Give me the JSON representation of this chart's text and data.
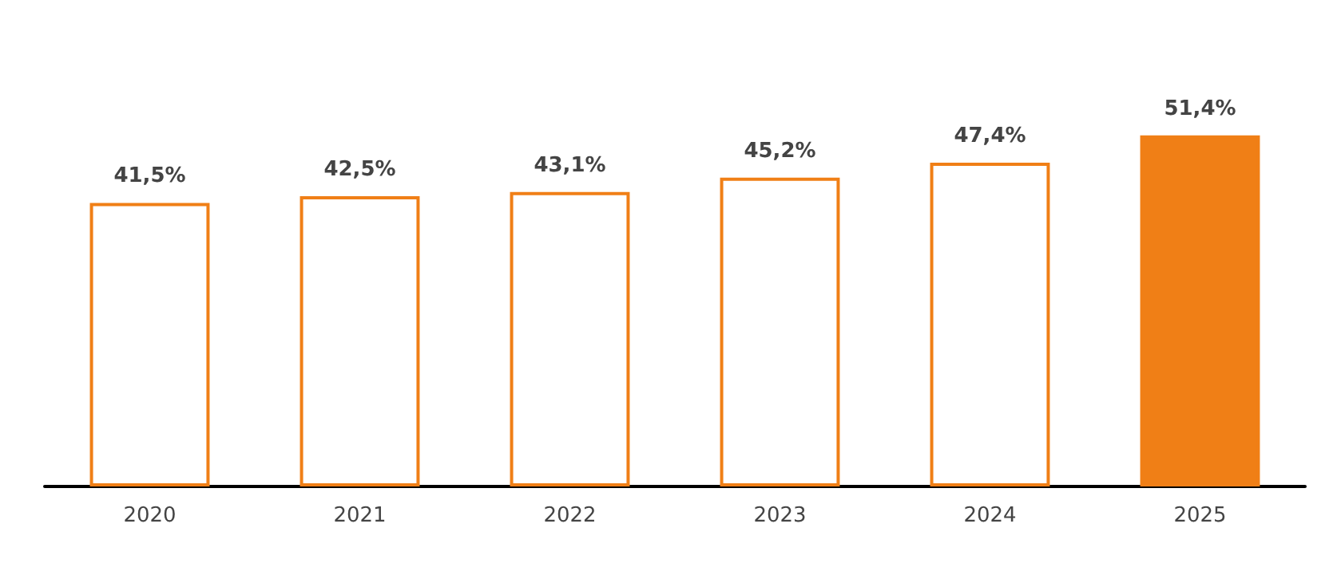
{
  "chart_data": {
    "type": "bar",
    "categories": [
      "2020",
      "2021",
      "2022",
      "2023",
      "2024",
      "2025"
    ],
    "values": [
      41.5,
      42.5,
      43.1,
      45.2,
      47.4,
      51.4
    ],
    "value_labels": [
      "41,5%",
      "42,5%",
      "43,1%",
      "45,2%",
      "47,4%",
      "51,4%"
    ],
    "color": "#f07f16",
    "colors": [
      "#ffffff",
      "#ffffff",
      "#ffffff",
      "#ffffff",
      "#ffffff",
      "#f07f16"
    ],
    "grid": false
  }
}
